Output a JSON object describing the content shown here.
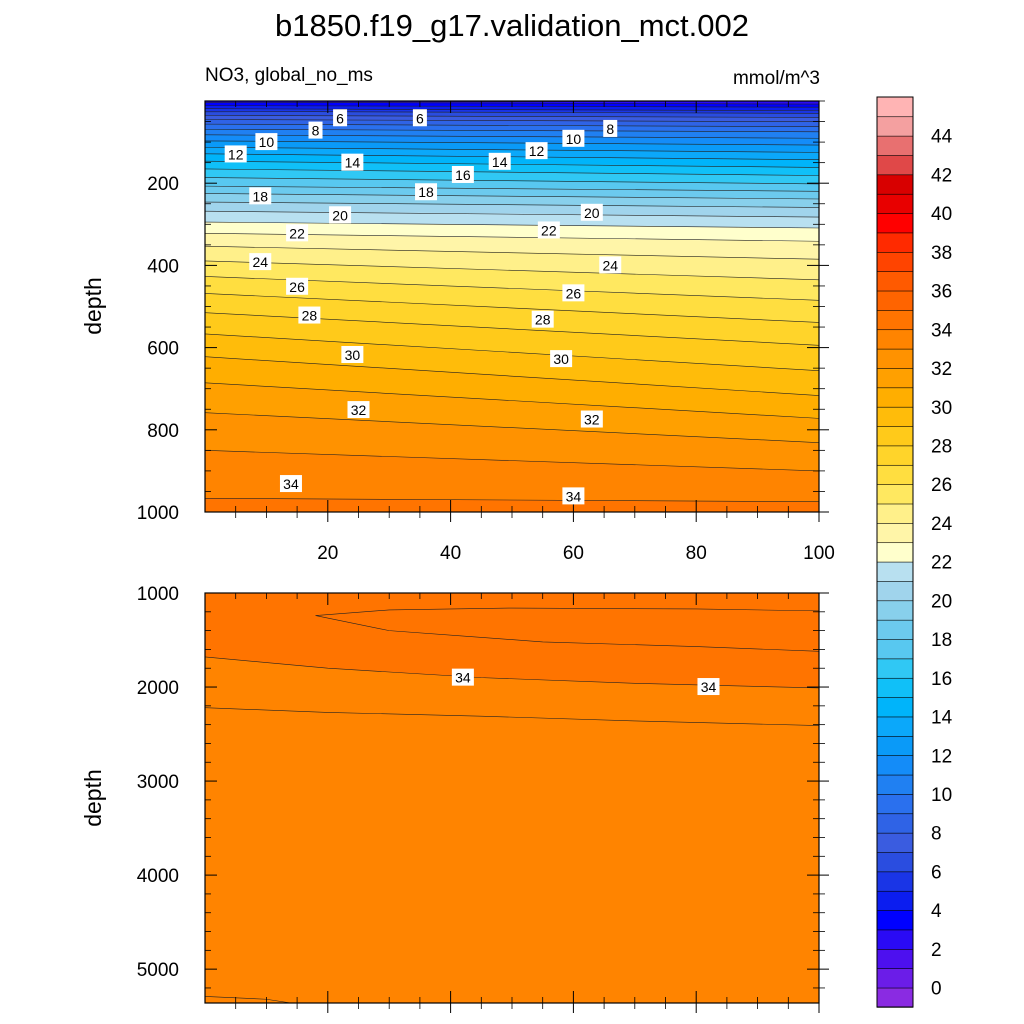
{
  "chart_data": {
    "type": "contour",
    "title": "b1850.f19_g17.validation_mct.002",
    "subtitle_left": "NO3, global_no_ms",
    "subtitle_right": "mmol/m^3",
    "x": {
      "label": "",
      "range": [
        0,
        100
      ],
      "ticks": [
        20,
        40,
        60,
        80,
        100
      ],
      "minor_step": 5
    },
    "panels": [
      {
        "name": "upper",
        "ylabel": "depth",
        "ylim": [
          0,
          1000
        ],
        "yticks": [
          200,
          400,
          600,
          800,
          1000
        ],
        "y_minor_step": 50,
        "y_inverted": true
      },
      {
        "name": "lower",
        "ylabel": "depth",
        "ylim": [
          1000,
          5360
        ],
        "yticks": [
          1000,
          2000,
          3000,
          4000,
          5000
        ],
        "y_minor_step": 200,
        "y_inverted": true
      }
    ],
    "levels": [
      0,
      1,
      2,
      3,
      4,
      5,
      6,
      7,
      8,
      9,
      10,
      11,
      12,
      13,
      14,
      15,
      16,
      17,
      18,
      19,
      20,
      21,
      22,
      23,
      24,
      25,
      26,
      27,
      28,
      29,
      30,
      31,
      32,
      33,
      34,
      35,
      36,
      37,
      38,
      39,
      40,
      41,
      42,
      43,
      44,
      45
    ],
    "colors": [
      "#8a2be2",
      "#6b1de8",
      "#4d10ef",
      "#2a0af5",
      "#0000ff",
      "#0b1df0",
      "#1a35e6",
      "#2a4de0",
      "#3a5ce0",
      "#2f63e6",
      "#2a70ee",
      "#2080f2",
      "#148cf8",
      "#0a9af8",
      "#0ba8fa",
      "#00b4fa",
      "#10c0f8",
      "#30c8f4",
      "#58c8f0",
      "#6ccaee",
      "#88d0ec",
      "#a0d4ec",
      "#b8e0f0",
      "#ffffcc",
      "#fff5a8",
      "#fff08a",
      "#ffe860",
      "#ffde40",
      "#ffd42a",
      "#ffca1a",
      "#ffbc0a",
      "#ffae00",
      "#ffa000",
      "#ff9200",
      "#ff8400",
      "#ff7400",
      "#ff6400",
      "#ff5a00",
      "#ff4400",
      "#ff2a00",
      "#ff0000",
      "#e80000",
      "#d80000",
      "#e04848",
      "#e87070",
      "#f4a0a0",
      "#ffb4b4"
    ],
    "colorbar_labels": [
      0,
      2,
      4,
      6,
      8,
      10,
      12,
      14,
      16,
      18,
      20,
      22,
      24,
      26,
      28,
      30,
      32,
      34,
      36,
      38,
      40,
      42,
      44
    ],
    "upper_profile": {
      "depth": [
        0,
        15,
        30,
        50,
        75,
        100,
        125,
        150,
        175,
        200,
        225,
        250,
        275,
        300,
        330,
        360,
        400,
        450,
        500,
        550,
        600,
        650,
        700,
        750,
        800,
        850,
        900,
        950,
        1000
      ],
      "no3_x0": [
        2.5,
        4.5,
        6.5,
        8.5,
        10.5,
        12.2,
        13.8,
        15.2,
        16.5,
        17.6,
        19.0,
        20.2,
        21.3,
        22.2,
        23.3,
        24.2,
        25.3,
        26.6,
        27.7,
        28.7,
        29.6,
        30.5,
        31.2,
        31.9,
        32.5,
        33.0,
        33.5,
        33.9,
        34.2
      ],
      "no3_x100": [
        2.0,
        4.0,
        6.0,
        8.0,
        10.0,
        11.6,
        13.0,
        14.4,
        15.7,
        16.9,
        18.3,
        19.6,
        20.7,
        21.7,
        22.7,
        23.5,
        24.3,
        25.3,
        26.3,
        27.2,
        28.1,
        28.9,
        29.7,
        30.6,
        31.5,
        32.3,
        33.0,
        33.7,
        34.3
      ]
    },
    "upper_labels": [
      {
        "text": "6",
        "x": 22,
        "depth": 42
      },
      {
        "text": "6",
        "x": 35,
        "depth": 42
      },
      {
        "text": "8",
        "x": 18,
        "depth": 72
      },
      {
        "text": "8",
        "x": 66,
        "depth": 68
      },
      {
        "text": "10",
        "x": 10,
        "depth": 100
      },
      {
        "text": "10",
        "x": 60,
        "depth": 92
      },
      {
        "text": "12",
        "x": 5,
        "depth": 130
      },
      {
        "text": "12",
        "x": 54,
        "depth": 122
      },
      {
        "text": "14",
        "x": 24,
        "depth": 150
      },
      {
        "text": "14",
        "x": 48,
        "depth": 148
      },
      {
        "text": "16",
        "x": 42,
        "depth": 180
      },
      {
        "text": "18",
        "x": 9,
        "depth": 232
      },
      {
        "text": "18",
        "x": 36,
        "depth": 222
      },
      {
        "text": "20",
        "x": 22,
        "depth": 278
      },
      {
        "text": "20",
        "x": 63,
        "depth": 272
      },
      {
        "text": "22",
        "x": 15,
        "depth": 322
      },
      {
        "text": "22",
        "x": 56,
        "depth": 315
      },
      {
        "text": "24",
        "x": 9,
        "depth": 392
      },
      {
        "text": "24",
        "x": 66,
        "depth": 400
      },
      {
        "text": "26",
        "x": 15,
        "depth": 452
      },
      {
        "text": "26",
        "x": 60,
        "depth": 468
      },
      {
        "text": "28",
        "x": 17,
        "depth": 522
      },
      {
        "text": "28",
        "x": 55,
        "depth": 532
      },
      {
        "text": "30",
        "x": 24,
        "depth": 618
      },
      {
        "text": "30",
        "x": 58,
        "depth": 628
      },
      {
        "text": "32",
        "x": 25,
        "depth": 752
      },
      {
        "text": "32",
        "x": 63,
        "depth": 775
      },
      {
        "text": "34",
        "x": 14,
        "depth": 932
      },
      {
        "text": "34",
        "x": 60,
        "depth": 962
      }
    ],
    "lower_regions": [
      {
        "value": 34.3,
        "boundary_bottom": [
          [
            18,
            1240
          ],
          [
            30,
            1400
          ],
          [
            55,
            1520
          ],
          [
            80,
            1570
          ],
          [
            100,
            1620
          ]
        ],
        "boundary_top": [
          [
            18,
            1240
          ],
          [
            30,
            1180
          ],
          [
            50,
            1160
          ],
          [
            80,
            1170
          ],
          [
            100,
            1190
          ]
        ]
      }
    ],
    "lower_contours": [
      {
        "level": 34,
        "points": [
          [
            0,
            1680
          ],
          [
            20,
            1800
          ],
          [
            45,
            1900
          ],
          [
            70,
            1960
          ],
          [
            100,
            2010
          ]
        ]
      },
      {
        "level": 33.5,
        "points": [
          [
            0,
            2220
          ],
          [
            20,
            2270
          ],
          [
            45,
            2310
          ],
          [
            70,
            2360
          ],
          [
            100,
            2410
          ]
        ]
      },
      {
        "level": 33,
        "points": [
          [
            0,
            5290
          ],
          [
            10,
            5320
          ],
          [
            14,
            5360
          ]
        ]
      }
    ],
    "lower_labels": [
      {
        "text": "34",
        "x": 42,
        "depth": 1900
      },
      {
        "text": "34",
        "x": 82,
        "depth": 2000
      }
    ]
  }
}
